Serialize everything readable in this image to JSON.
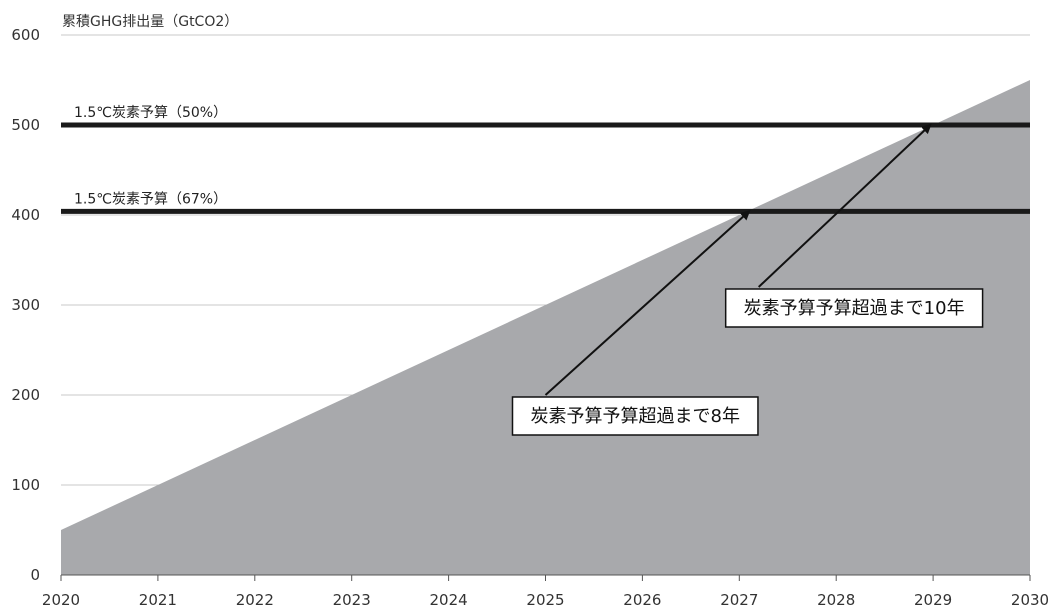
{
  "chart_data": {
    "type": "area",
    "ylabel": "累積GHG排出量（GtCO2）",
    "x": [
      2020,
      2030
    ],
    "y": [
      50,
      550
    ],
    "xlim": [
      2020,
      2030
    ],
    "ylim": [
      0,
      600
    ],
    "x_ticks": [
      "2020",
      "2021",
      "2022",
      "2023",
      "2024",
      "2025",
      "2026",
      "2027",
      "2028",
      "2029",
      "2030"
    ],
    "y_ticks": [
      "0",
      "100",
      "200",
      "300",
      "400",
      "500",
      "600"
    ],
    "grid": "horizontal",
    "colors": {
      "area": "#a8a9ac",
      "reference": "#1a1a1a",
      "grid": "#c8c8c8"
    },
    "reference_lines": [
      {
        "label": "1.5℃炭素予算（50%）",
        "value": 500
      },
      {
        "label": "1.5℃炭素予算（67%）",
        "value": 404
      }
    ],
    "annotations": [
      {
        "text": "炭素予算予算超過まで8年",
        "target_x": 2027.1,
        "target_y": 404,
        "anchor_x": 2025.0,
        "anchor_y": 200
      },
      {
        "text": "炭素予算予算超過まで10年",
        "target_x": 2028.97,
        "target_y": 500,
        "anchor_x": 2027.2,
        "anchor_y": 320
      }
    ]
  }
}
